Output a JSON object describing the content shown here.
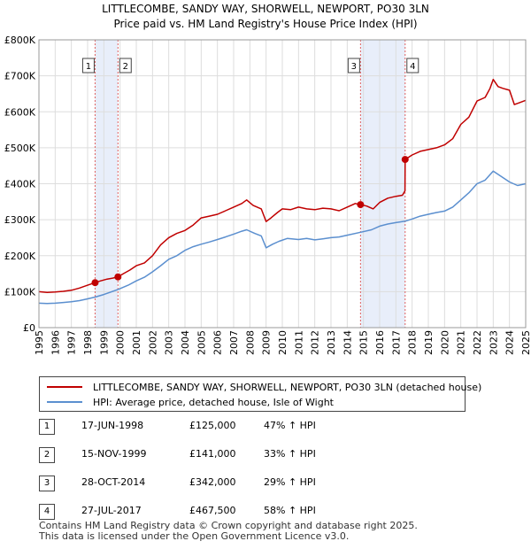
{
  "title_line1": "LITTLECOMBE, SANDY WAY, SHORWELL, NEWPORT, PO30 3LN",
  "title_line2": "Price paid vs. HM Land Registry's House Price Index (HPI)",
  "colors": {
    "property": "#c00000",
    "hpi": "#5b8fcf",
    "shade": "#e8eefa",
    "vline": "#e06060",
    "grid": "#dddddd"
  },
  "chart_data": {
    "type": "line",
    "title": "Price paid vs. HM Land Registry's House Price Index (HPI)",
    "xlabel": "",
    "ylabel": "",
    "xlim": [
      1995,
      2025
    ],
    "ylim": [
      0,
      800000
    ],
    "y_ticks": [
      0,
      100000,
      200000,
      300000,
      400000,
      500000,
      600000,
      700000,
      800000
    ],
    "y_tick_labels": [
      "£0",
      "£100K",
      "£200K",
      "£300K",
      "£400K",
      "£500K",
      "£600K",
      "£700K",
      "£800K"
    ],
    "x_ticks": [
      1995,
      1996,
      1997,
      1998,
      1999,
      2000,
      2001,
      2002,
      2003,
      2004,
      2005,
      2006,
      2007,
      2008,
      2009,
      2010,
      2011,
      2012,
      2013,
      2014,
      2015,
      2016,
      2017,
      2018,
      2019,
      2020,
      2021,
      2022,
      2023,
      2024,
      2025
    ],
    "x_tick_labels": [
      "1995",
      "1996",
      "1997",
      "1998",
      "1999",
      "2000",
      "2001",
      "2002",
      "2003",
      "2004",
      "2005",
      "2006",
      "2007",
      "2008",
      "2009",
      "2010",
      "2011",
      "2012",
      "2013",
      "2014",
      "2015",
      "2016",
      "2017",
      "2018",
      "2019",
      "2020",
      "2021",
      "2022",
      "2023",
      "2024",
      "2025"
    ],
    "series": [
      {
        "name": "LITTLECOMBE, SANDY WAY, SHORWELL, NEWPORT, PO30 3LN (detached house)",
        "color": "#c00000",
        "points": [
          [
            1995.0,
            100000
          ],
          [
            1995.5,
            98000
          ],
          [
            1996.0,
            99000
          ],
          [
            1996.5,
            101000
          ],
          [
            1997.0,
            104000
          ],
          [
            1997.5,
            110000
          ],
          [
            1998.0,
            118000
          ],
          [
            1998.46,
            125000
          ],
          [
            1998.8,
            130000
          ],
          [
            1999.2,
            135000
          ],
          [
            1999.6,
            138000
          ],
          [
            1999.87,
            141000
          ],
          [
            2000.2,
            150000
          ],
          [
            2000.6,
            160000
          ],
          [
            2001.0,
            172000
          ],
          [
            2001.5,
            180000
          ],
          [
            2002.0,
            200000
          ],
          [
            2002.5,
            230000
          ],
          [
            2003.0,
            250000
          ],
          [
            2003.5,
            262000
          ],
          [
            2004.0,
            270000
          ],
          [
            2004.5,
            285000
          ],
          [
            2005.0,
            305000
          ],
          [
            2005.5,
            310000
          ],
          [
            2006.0,
            315000
          ],
          [
            2006.5,
            325000
          ],
          [
            2007.0,
            335000
          ],
          [
            2007.5,
            345000
          ],
          [
            2007.8,
            355000
          ],
          [
            2008.2,
            340000
          ],
          [
            2008.7,
            330000
          ],
          [
            2009.0,
            295000
          ],
          [
            2009.3,
            305000
          ],
          [
            2009.7,
            320000
          ],
          [
            2010.0,
            330000
          ],
          [
            2010.5,
            328000
          ],
          [
            2011.0,
            335000
          ],
          [
            2011.5,
            330000
          ],
          [
            2012.0,
            328000
          ],
          [
            2012.5,
            332000
          ],
          [
            2013.0,
            330000
          ],
          [
            2013.5,
            325000
          ],
          [
            2014.0,
            335000
          ],
          [
            2014.5,
            345000
          ],
          [
            2014.82,
            342000
          ],
          [
            2015.2,
            338000
          ],
          [
            2015.6,
            330000
          ],
          [
            2016.0,
            348000
          ],
          [
            2016.5,
            360000
          ],
          [
            2017.0,
            365000
          ],
          [
            2017.4,
            368000
          ],
          [
            2017.56,
            380000
          ],
          [
            2017.57,
            467500
          ],
          [
            2018.0,
            480000
          ],
          [
            2018.5,
            490000
          ],
          [
            2019.0,
            495000
          ],
          [
            2019.5,
            500000
          ],
          [
            2020.0,
            508000
          ],
          [
            2020.5,
            525000
          ],
          [
            2021.0,
            565000
          ],
          [
            2021.5,
            585000
          ],
          [
            2022.0,
            630000
          ],
          [
            2022.5,
            640000
          ],
          [
            2022.8,
            665000
          ],
          [
            2023.0,
            690000
          ],
          [
            2023.3,
            670000
          ],
          [
            2023.6,
            665000
          ],
          [
            2024.0,
            660000
          ],
          [
            2024.3,
            620000
          ],
          [
            2024.6,
            625000
          ],
          [
            2025.0,
            632000
          ]
        ]
      },
      {
        "name": "HPI: Average price, detached house, Isle of Wight",
        "color": "#5b8fcf",
        "points": [
          [
            1995.0,
            68000
          ],
          [
            1995.5,
            67000
          ],
          [
            1996.0,
            68000
          ],
          [
            1996.5,
            70000
          ],
          [
            1997.0,
            72000
          ],
          [
            1997.5,
            75000
          ],
          [
            1998.0,
            80000
          ],
          [
            1998.46,
            85000
          ],
          [
            1999.0,
            92000
          ],
          [
            1999.87,
            106000
          ],
          [
            2000.5,
            118000
          ],
          [
            2001.0,
            130000
          ],
          [
            2001.5,
            140000
          ],
          [
            2002.0,
            155000
          ],
          [
            2002.5,
            172000
          ],
          [
            2003.0,
            190000
          ],
          [
            2003.5,
            200000
          ],
          [
            2004.0,
            215000
          ],
          [
            2004.5,
            225000
          ],
          [
            2005.0,
            232000
          ],
          [
            2005.5,
            238000
          ],
          [
            2006.0,
            245000
          ],
          [
            2006.5,
            252000
          ],
          [
            2007.0,
            260000
          ],
          [
            2007.5,
            268000
          ],
          [
            2007.8,
            272000
          ],
          [
            2008.3,
            262000
          ],
          [
            2008.7,
            255000
          ],
          [
            2009.0,
            222000
          ],
          [
            2009.4,
            232000
          ],
          [
            2009.8,
            240000
          ],
          [
            2010.3,
            248000
          ],
          [
            2011.0,
            245000
          ],
          [
            2011.5,
            248000
          ],
          [
            2012.0,
            244000
          ],
          [
            2012.5,
            247000
          ],
          [
            2013.0,
            250000
          ],
          [
            2013.5,
            252000
          ],
          [
            2014.0,
            257000
          ],
          [
            2014.82,
            265000
          ],
          [
            2015.5,
            272000
          ],
          [
            2016.0,
            282000
          ],
          [
            2016.5,
            288000
          ],
          [
            2017.0,
            292000
          ],
          [
            2017.57,
            296000
          ],
          [
            2018.0,
            302000
          ],
          [
            2018.5,
            310000
          ],
          [
            2019.0,
            315000
          ],
          [
            2019.5,
            320000
          ],
          [
            2020.0,
            324000
          ],
          [
            2020.5,
            335000
          ],
          [
            2021.0,
            355000
          ],
          [
            2021.5,
            375000
          ],
          [
            2022.0,
            400000
          ],
          [
            2022.5,
            410000
          ],
          [
            2023.0,
            435000
          ],
          [
            2023.5,
            420000
          ],
          [
            2024.0,
            405000
          ],
          [
            2024.5,
            395000
          ],
          [
            2025.0,
            400000
          ]
        ]
      }
    ],
    "sales": [
      {
        "label": "1",
        "date": 1998.46,
        "price": 125000
      },
      {
        "label": "2",
        "date": 1999.87,
        "price": 141000
      },
      {
        "label": "3",
        "date": 2014.82,
        "price": 342000
      },
      {
        "label": "4",
        "date": 2017.57,
        "price": 467500
      }
    ],
    "shaded_ranges": [
      [
        1998.46,
        1999.87
      ],
      [
        2014.82,
        2017.57
      ]
    ]
  },
  "legend": {
    "property_label": "LITTLECOMBE, SANDY WAY, SHORWELL, NEWPORT, PO30 3LN (detached house)",
    "hpi_label": "HPI: Average price, detached house, Isle of Wight"
  },
  "sales_table": [
    {
      "num": "1",
      "date": "17-JUN-1998",
      "price": "£125,000",
      "hpi": "47% ↑ HPI"
    },
    {
      "num": "2",
      "date": "15-NOV-1999",
      "price": "£141,000",
      "hpi": "33% ↑ HPI"
    },
    {
      "num": "3",
      "date": "28-OCT-2014",
      "price": "£342,000",
      "hpi": "29% ↑ HPI"
    },
    {
      "num": "4",
      "date": "27-JUL-2017",
      "price": "£467,500",
      "hpi": "58% ↑ HPI"
    }
  ],
  "footer": {
    "line1": "Contains HM Land Registry data © Crown copyright and database right 2025.",
    "line2": "This data is licensed under the Open Government Licence v3.0."
  }
}
